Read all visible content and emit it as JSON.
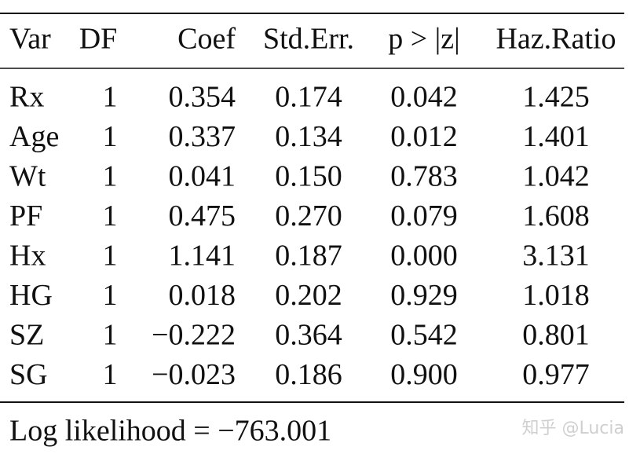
{
  "table": {
    "header": [
      "Var",
      "DF",
      "Coef",
      "Std.Err.",
      "p > |z|",
      "Haz.Ratio"
    ],
    "rows": [
      [
        "Rx",
        "1",
        "0.354",
        "0.174",
        "0.042",
        "1.425"
      ],
      [
        "Age",
        "1",
        "0.337",
        "0.134",
        "0.012",
        "1.401"
      ],
      [
        "Wt",
        "1",
        "0.041",
        "0.150",
        "0.783",
        "1.042"
      ],
      [
        "PF",
        "1",
        "0.475",
        "0.270",
        "0.079",
        "1.608"
      ],
      [
        "Hx",
        "1",
        "1.141",
        "0.187",
        "0.000",
        "3.131"
      ],
      [
        "HG",
        "1",
        "0.018",
        "0.202",
        "0.929",
        "1.018"
      ],
      [
        "SZ",
        "1",
        "−0.222",
        "0.364",
        "0.542",
        "0.801"
      ],
      [
        "SG",
        "1",
        "−0.023",
        "0.186",
        "0.900",
        "0.977"
      ]
    ],
    "footer": "Log likelihood = −763.001"
  },
  "watermark": "知乎 @Lucia"
}
